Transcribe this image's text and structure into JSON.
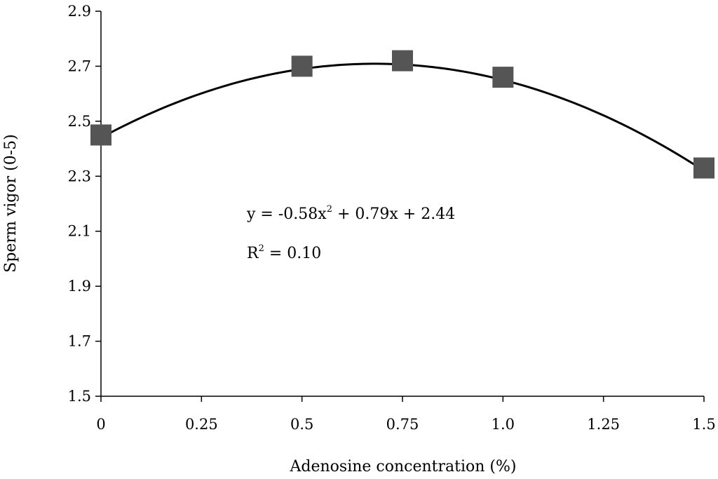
{
  "chart_data": {
    "type": "scatter",
    "xlabel": "Adenosine concentration (%)",
    "ylabel": "Sperm vigor (0-5)",
    "xlim": [
      0,
      1.5
    ],
    "ylim": [
      1.5,
      2.9
    ],
    "x_ticks": [
      "0",
      "0.25",
      "0.5",
      "0.75",
      "1.0",
      "1.25",
      "1.5"
    ],
    "y_ticks": [
      "1.5",
      "1.7",
      "1.9",
      "2.1",
      "2.3",
      "2.5",
      "2.7",
      "2.9"
    ],
    "grid": false,
    "series": [
      {
        "marker": "square",
        "color": "#555555",
        "points": [
          {
            "x": 0,
            "y": 2.45
          },
          {
            "x": 0.5,
            "y": 2.7
          },
          {
            "x": 0.75,
            "y": 2.72
          },
          {
            "x": 1.0,
            "y": 2.66
          },
          {
            "x": 1.5,
            "y": 2.33
          }
        ]
      }
    ],
    "trendline": {
      "type": "polynomial",
      "coefficients": {
        "a": -0.58,
        "b": 0.79,
        "c": 2.44
      },
      "color": "#000000"
    },
    "annotations": {
      "equation": {
        "lhs": "y = -0.58x",
        "exp": "2",
        "rhs": " + 0.79x + 2.44"
      },
      "r_squared": {
        "lhs": "R",
        "exp": "2",
        "rhs": " = 0.10"
      }
    }
  }
}
